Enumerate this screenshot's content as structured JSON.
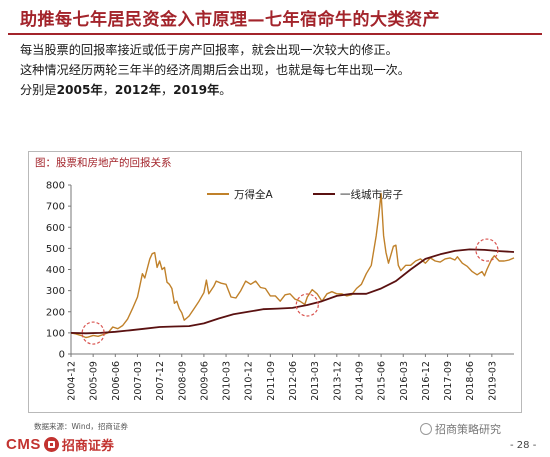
{
  "slide": {
    "title": "助推每七年居民资金入市原理—七年宿命牛的大类资产",
    "line1": "每当股票的回报率接近或低于房产回报率，就会出现一次较大的修正。",
    "line2": "这种情况经历两轮三年半的经济周期后会出现，也就是每七年出现一次。",
    "line3_prefix": "分别是",
    "year1": "2005年",
    "sep1": "，",
    "year2": "2012年",
    "sep2": "，",
    "year3": "2019年",
    "line3_suffix": "。"
  },
  "footer": {
    "source": "数据来源：Wind，招商证券",
    "logo_en": "CMS",
    "logo_cn": "招商证券",
    "watermark": "招商策略研究",
    "page": "- 28 -"
  },
  "colors": {
    "title": "#a3242b",
    "series_stock": "#c0812a",
    "series_housing": "#5a1111",
    "circle": "#d9534f"
  },
  "chart_data": {
    "type": "line",
    "title": "图：股票和房地产的回报关系",
    "ylim": [
      0,
      800
    ],
    "yticks": [
      0,
      100,
      200,
      300,
      400,
      500,
      600,
      700,
      800
    ],
    "x_start": "2004-12",
    "x_end": "2019-12",
    "xticks": [
      "2004-12",
      "2005-09",
      "2006-06",
      "2007-03",
      "2007-12",
      "2008-09",
      "2009-06",
      "2010-03",
      "2010-12",
      "2011-09",
      "2012-06",
      "2013-03",
      "2013-12",
      "2014-09",
      "2015-06",
      "2016-03",
      "2016-12",
      "2017-09",
      "2018-06",
      "2019-03"
    ],
    "legend_position": "top-center",
    "grid": false,
    "series": [
      {
        "name": "万得全A",
        "color": "#c0812a",
        "points": [
          [
            "2004-12",
            100
          ],
          [
            "2005-02",
            95
          ],
          [
            "2005-04",
            88
          ],
          [
            "2005-06",
            78
          ],
          [
            "2005-07",
            80
          ],
          [
            "2005-09",
            88
          ],
          [
            "2005-11",
            84
          ],
          [
            "2006-01",
            92
          ],
          [
            "2006-03",
            100
          ],
          [
            "2006-05",
            128
          ],
          [
            "2006-07",
            120
          ],
          [
            "2006-09",
            135
          ],
          [
            "2006-11",
            165
          ],
          [
            "2007-01",
            215
          ],
          [
            "2007-03",
            270
          ],
          [
            "2007-05",
            380
          ],
          [
            "2007-06",
            360
          ],
          [
            "2007-08",
            450
          ],
          [
            "2007-09",
            475
          ],
          [
            "2007-10",
            480
          ],
          [
            "2007-11",
            410
          ],
          [
            "2007-12",
            440
          ],
          [
            "2008-01",
            400
          ],
          [
            "2008-02",
            410
          ],
          [
            "2008-03",
            340
          ],
          [
            "2008-04",
            330
          ],
          [
            "2008-05",
            310
          ],
          [
            "2008-06",
            240
          ],
          [
            "2008-07",
            250
          ],
          [
            "2008-08",
            215
          ],
          [
            "2008-09",
            195
          ],
          [
            "2008-10",
            160
          ],
          [
            "2008-11",
            170
          ],
          [
            "2008-12",
            180
          ],
          [
            "2009-02",
            215
          ],
          [
            "2009-04",
            250
          ],
          [
            "2009-06",
            290
          ],
          [
            "2009-07",
            350
          ],
          [
            "2009-08",
            285
          ],
          [
            "2009-10",
            320
          ],
          [
            "2009-11",
            345
          ],
          [
            "2010-01",
            335
          ],
          [
            "2010-03",
            330
          ],
          [
            "2010-05",
            270
          ],
          [
            "2010-07",
            265
          ],
          [
            "2010-09",
            300
          ],
          [
            "2010-11",
            345
          ],
          [
            "2011-01",
            330
          ],
          [
            "2011-03",
            345
          ],
          [
            "2011-05",
            315
          ],
          [
            "2011-07",
            310
          ],
          [
            "2011-09",
            275
          ],
          [
            "2011-11",
            275
          ],
          [
            "2012-01",
            250
          ],
          [
            "2012-03",
            280
          ],
          [
            "2012-05",
            285
          ],
          [
            "2012-07",
            260
          ],
          [
            "2012-09",
            250
          ],
          [
            "2012-11",
            235
          ],
          [
            "2012-12",
            270
          ],
          [
            "2013-02",
            305
          ],
          [
            "2013-04",
            285
          ],
          [
            "2013-06",
            250
          ],
          [
            "2013-08",
            285
          ],
          [
            "2013-10",
            295
          ],
          [
            "2013-12",
            285
          ],
          [
            "2014-02",
            285
          ],
          [
            "2014-04",
            275
          ],
          [
            "2014-06",
            280
          ],
          [
            "2014-08",
            310
          ],
          [
            "2014-10",
            330
          ],
          [
            "2014-12",
            380
          ],
          [
            "2015-02",
            420
          ],
          [
            "2015-04",
            560
          ],
          [
            "2015-05",
            650
          ],
          [
            "2015-06",
            760
          ],
          [
            "2015-07",
            560
          ],
          [
            "2015-08",
            480
          ],
          [
            "2015-09",
            430
          ],
          [
            "2015-11",
            510
          ],
          [
            "2015-12",
            515
          ],
          [
            "2016-01",
            420
          ],
          [
            "2016-02",
            395
          ],
          [
            "2016-04",
            420
          ],
          [
            "2016-06",
            420
          ],
          [
            "2016-08",
            440
          ],
          [
            "2016-10",
            450
          ],
          [
            "2016-12",
            430
          ],
          [
            "2017-02",
            455
          ],
          [
            "2017-04",
            440
          ],
          [
            "2017-06",
            435
          ],
          [
            "2017-08",
            450
          ],
          [
            "2017-10",
            455
          ],
          [
            "2017-12",
            445
          ],
          [
            "2018-01",
            460
          ],
          [
            "2018-03",
            430
          ],
          [
            "2018-05",
            415
          ],
          [
            "2018-07",
            390
          ],
          [
            "2018-09",
            375
          ],
          [
            "2018-11",
            390
          ],
          [
            "2018-12",
            370
          ],
          [
            "2019-01",
            400
          ],
          [
            "2019-03",
            450
          ],
          [
            "2019-04",
            465
          ],
          [
            "2019-06",
            440
          ],
          [
            "2019-08",
            440
          ],
          [
            "2019-10",
            445
          ],
          [
            "2019-12",
            455
          ]
        ]
      },
      {
        "name": "一线城市房子",
        "color": "#5a1111",
        "points": [
          [
            "2004-12",
            100
          ],
          [
            "2005-06",
            98
          ],
          [
            "2005-12",
            100
          ],
          [
            "2006-06",
            105
          ],
          [
            "2006-12",
            112
          ],
          [
            "2007-06",
            120
          ],
          [
            "2007-12",
            128
          ],
          [
            "2008-06",
            130
          ],
          [
            "2008-12",
            132
          ],
          [
            "2009-06",
            145
          ],
          [
            "2009-12",
            168
          ],
          [
            "2010-06",
            188
          ],
          [
            "2010-12",
            200
          ],
          [
            "2011-06",
            212
          ],
          [
            "2011-12",
            215
          ],
          [
            "2012-06",
            218
          ],
          [
            "2012-12",
            232
          ],
          [
            "2013-06",
            250
          ],
          [
            "2013-12",
            275
          ],
          [
            "2014-06",
            285
          ],
          [
            "2014-12",
            285
          ],
          [
            "2015-06",
            310
          ],
          [
            "2015-12",
            345
          ],
          [
            "2016-06",
            400
          ],
          [
            "2016-12",
            450
          ],
          [
            "2017-06",
            472
          ],
          [
            "2017-12",
            488
          ],
          [
            "2018-06",
            495
          ],
          [
            "2018-12",
            493
          ],
          [
            "2019-06",
            487
          ],
          [
            "2019-12",
            483
          ]
        ]
      }
    ],
    "highlight_dates": [
      "2005-09",
      "2012-12",
      "2019-01"
    ]
  }
}
